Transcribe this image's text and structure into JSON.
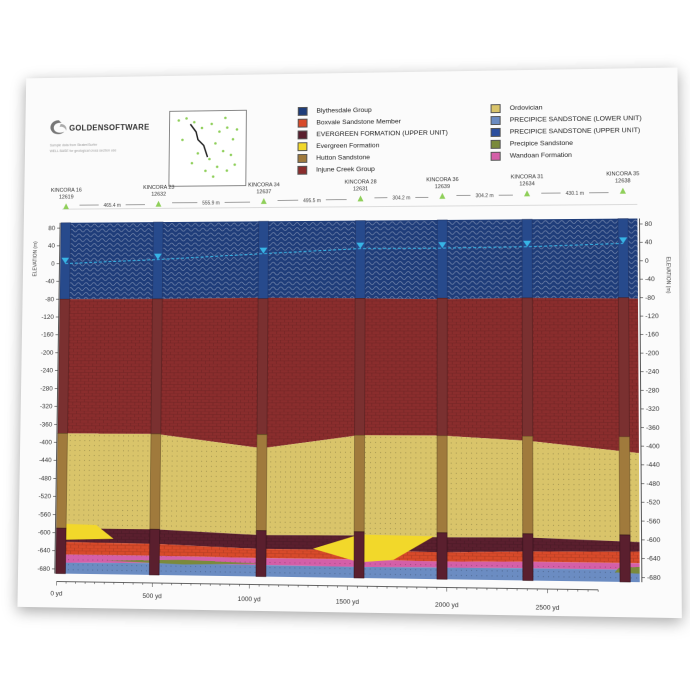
{
  "app": {
    "brand": "GOLDENSOFTWARE",
    "sub_lines": [
      "Sample data from Strater/Surfer",
      "WELL BASE for geological cross section use"
    ]
  },
  "legend": {
    "left": [
      {
        "label": "Blythesdale Group",
        "color": "#1f3d7a"
      },
      {
        "label": "Boxvale Sandstone Member",
        "color": "#d84a2a"
      },
      {
        "label": "EVERGREEN FORMATION (UPPER UNIT)",
        "color": "#5a1f2e"
      },
      {
        "label": "Evergreen Formation",
        "color": "#f2d82a"
      },
      {
        "label": "Hutton Sandstone",
        "color": "#a07a3c"
      },
      {
        "label": "Injune Creek Group",
        "color": "#8a2d2d"
      }
    ],
    "right": [
      {
        "label": "Ordovician",
        "color": "#d9c46a"
      },
      {
        "label": "PRECIPICE SANDSTONE (LOWER UNIT)",
        "color": "#6b8cc2"
      },
      {
        "label": "PRECIPICE SANDSTONE (UPPER UNIT)",
        "color": "#2c4f9e"
      },
      {
        "label": "Precipice Sandstone",
        "color": "#7a8a3c"
      },
      {
        "label": "Wandoan Formation",
        "color": "#d45fa8"
      }
    ]
  },
  "axis": {
    "title": "ELEVATION (m)",
    "y_ticks": [
      80,
      40,
      0,
      -40,
      -80,
      -120,
      -160,
      -200,
      -240,
      -280,
      -320,
      -360,
      -400,
      -440,
      -480,
      -520,
      -560,
      -600,
      -640,
      -680
    ],
    "x_ticks": [
      "0 yd",
      "500 yd",
      "1000 yd",
      "1500 yd",
      "2000 yd",
      "2500 yd"
    ]
  },
  "wells": [
    {
      "name": "KINCORA 16",
      "id": "12619"
    },
    {
      "name": "KINCORA 23",
      "id": "12632"
    },
    {
      "name": "KINCORA 34",
      "id": "12637"
    },
    {
      "name": "KINCORA 28",
      "id": "12631"
    },
    {
      "name": "KINCORA 36",
      "id": "12639"
    },
    {
      "name": "KINCORA 31",
      "id": "12634"
    },
    {
      "name": "KINCORA 35",
      "id": "12638"
    }
  ],
  "distances": [
    "465.4 m",
    "555.9 m",
    "495.5 m",
    "304.2 m",
    "304.2 m",
    "430.1 m"
  ],
  "colors": {
    "blythesdale": "#1f3d7a",
    "injune": "#8a2d2d",
    "ordovician": "#d9c46a",
    "evergreen": "#f2d82a",
    "evergreen_upper": "#5a1f2e",
    "boxvale": "#d84a2a",
    "wandoan": "#d45fa8",
    "precipice": "#7a8a3c",
    "precipice_lower": "#6b8cc2",
    "hutton": "#a07a3c",
    "water": "#37b5e6"
  }
}
